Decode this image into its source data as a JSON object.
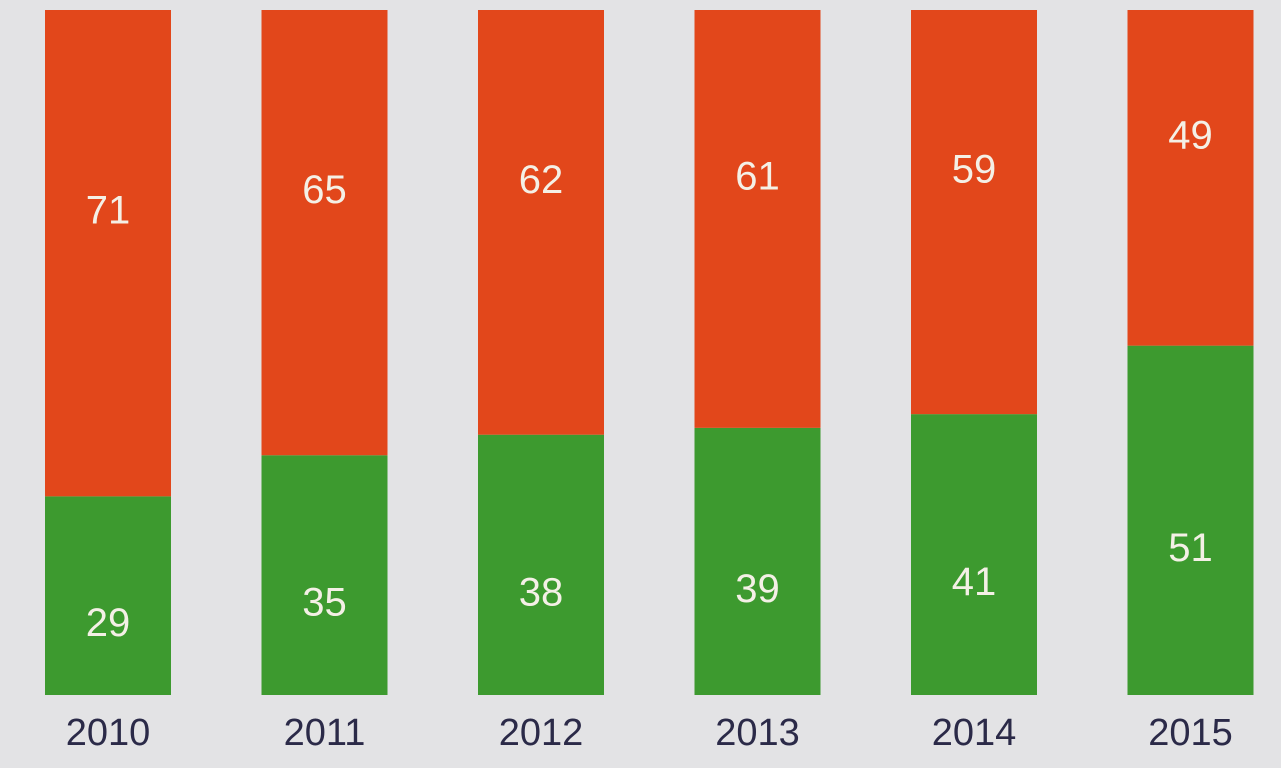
{
  "chart_data": {
    "type": "bar",
    "stacked": true,
    "categories": [
      "2010",
      "2011",
      "2012",
      "2013",
      "2014",
      "2015"
    ],
    "series": [
      {
        "color": "#3d9a2f",
        "values": [
          29,
          35,
          38,
          39,
          41,
          51
        ]
      },
      {
        "color": "#e2471b",
        "values": [
          71,
          65,
          62,
          61,
          59,
          49
        ]
      }
    ],
    "ylim": [
      0,
      100
    ]
  }
}
